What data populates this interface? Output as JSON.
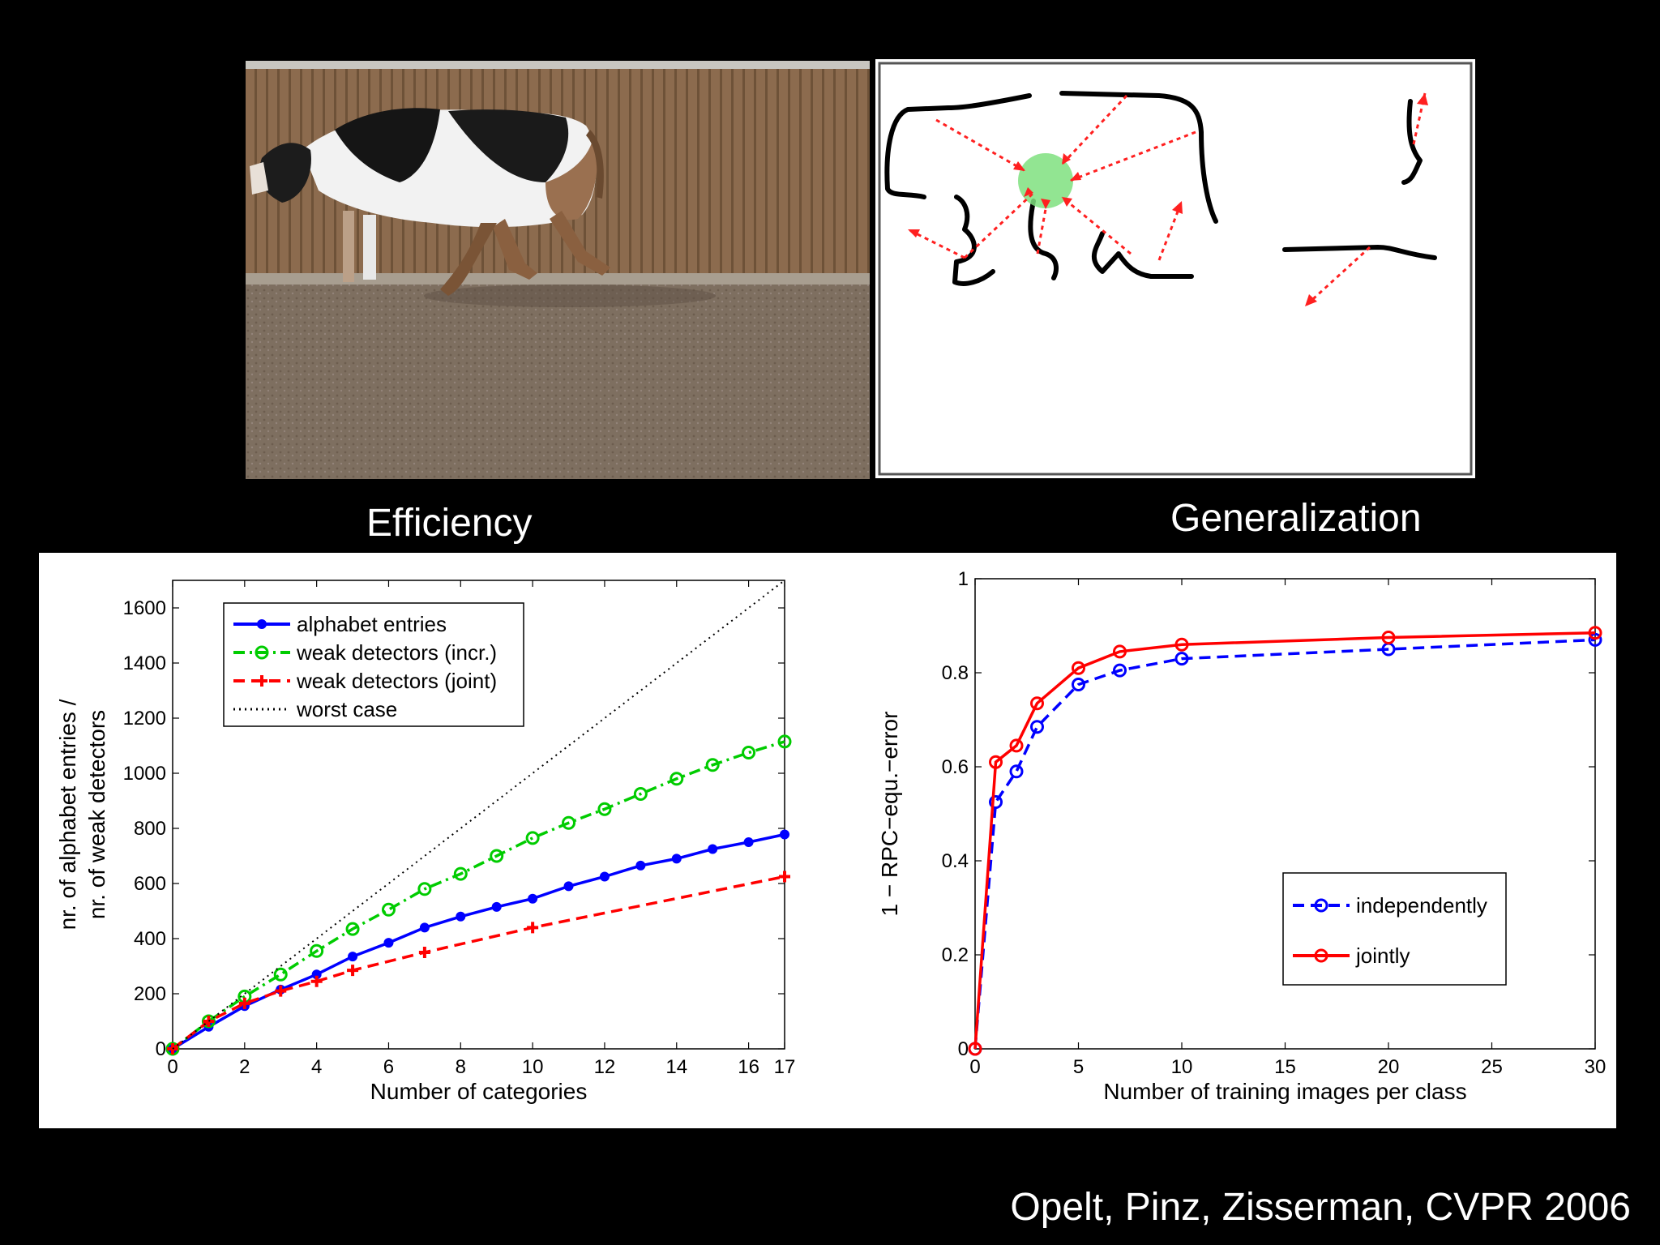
{
  "captions": {
    "left": "Efficiency",
    "right": "Generalization"
  },
  "citation": "Opelt, Pinz, Zisserman, CVPR 2006",
  "chart_data": [
    {
      "type": "line",
      "xlabel": "Number of categories",
      "ylabel": [
        "nr. of alphabet entries /",
        "nr. of weak detectors"
      ],
      "xlim": [
        0,
        17
      ],
      "ylim": [
        0,
        1700
      ],
      "xticks": [
        0,
        2,
        4,
        6,
        8,
        10,
        12,
        14,
        16,
        17
      ],
      "yticks": [
        0,
        200,
        400,
        600,
        800,
        1000,
        1200,
        1400,
        1600
      ],
      "legend_position": "top-left",
      "series": [
        {
          "name": "alphabet entries",
          "color": "#0000ff",
          "style": "solid",
          "marker": "dot",
          "x": [
            0,
            1,
            2,
            3,
            4,
            5,
            6,
            7,
            8,
            9,
            10,
            11,
            12,
            13,
            14,
            15,
            16,
            17
          ],
          "y": [
            0,
            80,
            155,
            215,
            270,
            335,
            385,
            440,
            480,
            515,
            545,
            590,
            625,
            665,
            690,
            725,
            750,
            778
          ]
        },
        {
          "name": "weak detectors (incr.)",
          "color": "#00cc00",
          "style": "dashdot",
          "marker": "circle",
          "x": [
            0,
            1,
            2,
            3,
            4,
            5,
            6,
            7,
            8,
            9,
            10,
            11,
            12,
            13,
            14,
            15,
            16,
            17
          ],
          "y": [
            0,
            100,
            190,
            270,
            355,
            435,
            505,
            580,
            635,
            700,
            765,
            820,
            870,
            925,
            980,
            1030,
            1075,
            1115
          ]
        },
        {
          "name": "weak detectors (joint)",
          "color": "#ff0000",
          "style": "dashed",
          "marker": "plus",
          "x": [
            0,
            1,
            2,
            3,
            4,
            5,
            7,
            10,
            17
          ],
          "y": [
            0,
            100,
            165,
            210,
            245,
            285,
            350,
            440,
            625
          ]
        },
        {
          "name": "worst case",
          "color": "#000000",
          "style": "dotted",
          "marker": "none",
          "x": [
            0,
            17
          ],
          "y": [
            0,
            1700
          ]
        }
      ]
    },
    {
      "type": "line",
      "xlabel": "Number of training images per class",
      "ylabel": "1 − RPC−equ.−error",
      "xlim": [
        0,
        30
      ],
      "ylim": [
        0,
        1
      ],
      "xticks": [
        0,
        5,
        10,
        15,
        20,
        25,
        30
      ],
      "yticks": [
        0,
        0.2,
        0.4,
        0.6,
        0.8,
        1
      ],
      "legend_position": "bottom-right",
      "series": [
        {
          "name": "independently",
          "color": "#0000ff",
          "style": "dashed",
          "marker": "circle",
          "x": [
            0,
            1,
            2,
            3,
            5,
            7,
            10,
            20,
            30
          ],
          "y": [
            0,
            0.525,
            0.59,
            0.685,
            0.775,
            0.805,
            0.83,
            0.85,
            0.87
          ]
        },
        {
          "name": "jointly",
          "color": "#ff0000",
          "style": "solid",
          "marker": "circle",
          "x": [
            0,
            1,
            2,
            3,
            5,
            7,
            10,
            20,
            30
          ],
          "y": [
            0,
            0.61,
            0.645,
            0.735,
            0.81,
            0.845,
            0.86,
            0.875,
            0.885
          ]
        }
      ]
    }
  ]
}
